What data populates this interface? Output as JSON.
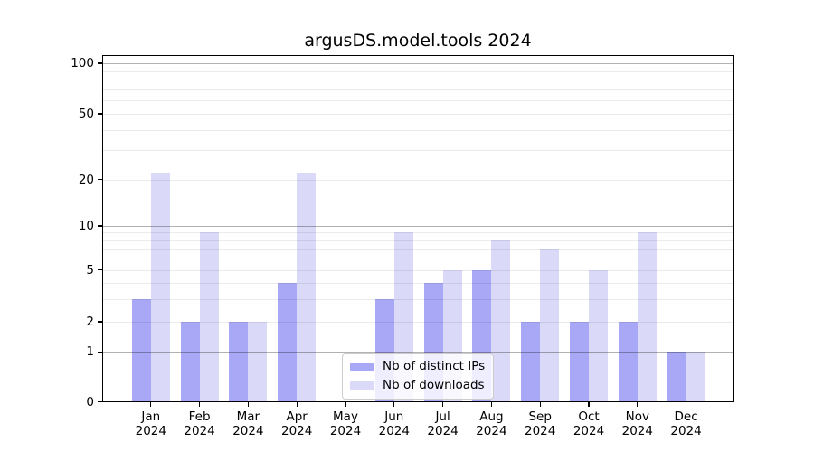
{
  "figure": {
    "title": "argusDS.model.tools 2024"
  },
  "colors": {
    "distinct_ips": "#a8a8f7",
    "downloads": "#dadaf8",
    "grid_major": "rgba(0,0,0,0.30)",
    "grid_minor": "rgba(0,0,0,0.08)",
    "spine": "#000000"
  },
  "legend": {
    "items": [
      {
        "label": "Nb of distinct IPs",
        "color_key": "distinct_ips"
      },
      {
        "label": "Nb of downloads",
        "color_key": "downloads"
      }
    ]
  },
  "y_axis": {
    "tick_labels": [
      100,
      50,
      20,
      10,
      5,
      2,
      1,
      0
    ]
  },
  "x_axis": {
    "months": [
      "Jan",
      "Feb",
      "Mar",
      "Apr",
      "May",
      "Jun",
      "Jul",
      "Aug",
      "Sep",
      "Oct",
      "Nov",
      "Dec"
    ],
    "year": "2024"
  },
  "chart_data": {
    "type": "bar",
    "title": "argusDS.model.tools 2024",
    "categories": [
      "Jan 2024",
      "Feb 2024",
      "Mar 2024",
      "Apr 2024",
      "May 2024",
      "Jun 2024",
      "Jul 2024",
      "Aug 2024",
      "Sep 2024",
      "Oct 2024",
      "Nov 2024",
      "Dec 2024"
    ],
    "series": [
      {
        "name": "Nb of distinct IPs",
        "color_key": "distinct_ips",
        "values": [
          3,
          2,
          2,
          4,
          0,
          3,
          4,
          5,
          2,
          2,
          2,
          1
        ]
      },
      {
        "name": "Nb of downloads",
        "color_key": "downloads",
        "values": [
          22,
          9,
          2,
          22,
          0,
          9,
          5,
          8,
          7,
          5,
          9,
          1
        ]
      }
    ],
    "y_scale": "asinh-like (logarithmic above 1, linear from 0 to 1)",
    "y_ticks": [
      0,
      1,
      2,
      5,
      10,
      20,
      50,
      100
    ],
    "y_minor_gridlines": [
      2,
      3,
      4,
      5,
      6,
      7,
      8,
      9,
      20,
      30,
      40,
      50,
      60,
      70,
      80,
      90
    ],
    "y_major_gridlines": [
      1,
      10,
      100
    ],
    "ylim": [
      0,
      112
    ],
    "grid": "horizontal major and minor, drawn over bars",
    "legend_position": "lower center"
  }
}
